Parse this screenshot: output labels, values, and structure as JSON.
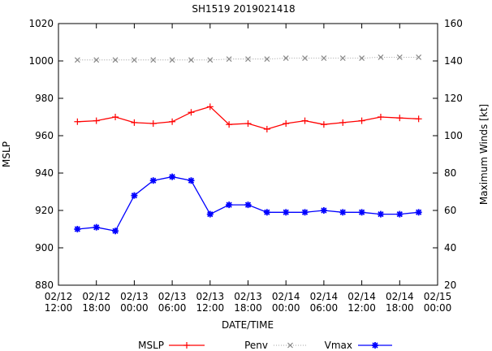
{
  "chart_data": {
    "type": "line",
    "title": "SH1519 2019021418",
    "xlabel": "DATE/TIME",
    "ylabel": "MSLP",
    "y2label": "Maximum Winds [kt]",
    "ylim": [
      880,
      1020
    ],
    "y2lim": [
      20,
      160
    ],
    "yticks": [
      880,
      900,
      920,
      940,
      960,
      980,
      1000,
      1020
    ],
    "y2ticks": [
      20,
      40,
      60,
      80,
      100,
      120,
      140,
      160
    ],
    "xlim": [
      "2019-02-12 12:00",
      "2019-02-15 00:00"
    ],
    "xticks": [
      {
        "date": "02/12",
        "time": "12:00"
      },
      {
        "date": "02/12",
        "time": "18:00"
      },
      {
        "date": "02/13",
        "time": "00:00"
      },
      {
        "date": "02/13",
        "time": "06:00"
      },
      {
        "date": "02/13",
        "time": "12:00"
      },
      {
        "date": "02/13",
        "time": "18:00"
      },
      {
        "date": "02/14",
        "time": "00:00"
      },
      {
        "date": "02/14",
        "time": "06:00"
      },
      {
        "date": "02/14",
        "time": "12:00"
      },
      {
        "date": "02/14",
        "time": "18:00"
      },
      {
        "date": "02/15",
        "time": "00:00"
      }
    ],
    "x": [
      "2019-02-12 15:00",
      "2019-02-12 18:00",
      "2019-02-12 21:00",
      "2019-02-13 00:00",
      "2019-02-13 03:00",
      "2019-02-13 06:00",
      "2019-02-13 09:00",
      "2019-02-13 12:00",
      "2019-02-13 15:00",
      "2019-02-13 18:00",
      "2019-02-13 21:00",
      "2019-02-14 00:00",
      "2019-02-14 03:00",
      "2019-02-14 06:00",
      "2019-02-14 09:00",
      "2019-02-14 12:00",
      "2019-02-14 15:00",
      "2019-02-14 18:00",
      "2019-02-14 21:00"
    ],
    "grid": false,
    "legend_position": "bottom",
    "series": [
      {
        "name": "MSLP",
        "axis": "left",
        "color": "#ff0000",
        "marker": "plus",
        "values": [
          967.5,
          968,
          970,
          967,
          966.5,
          967.5,
          972.5,
          975.5,
          966,
          966.5,
          963.5,
          966.5,
          968,
          966,
          967,
          968,
          970,
          969.5,
          969
        ]
      },
      {
        "name": "Penv",
        "axis": "left",
        "color": "#888888",
        "marker": "cross",
        "dashed": true,
        "values": [
          1000.5,
          1000.5,
          1000.5,
          1000.5,
          1000.5,
          1000.5,
          1000.5,
          1000.5,
          1001,
          1001,
          1001,
          1001.5,
          1001.5,
          1001.5,
          1001.5,
          1001.5,
          1002,
          1002,
          1002
        ]
      },
      {
        "name": "Vmax",
        "axis": "right",
        "color": "#0000ff",
        "marker": "star",
        "values": [
          50,
          51,
          49,
          68,
          76,
          78,
          76,
          58,
          63,
          63,
          59,
          59,
          59,
          60,
          59,
          59,
          58,
          58,
          59
        ]
      }
    ]
  }
}
